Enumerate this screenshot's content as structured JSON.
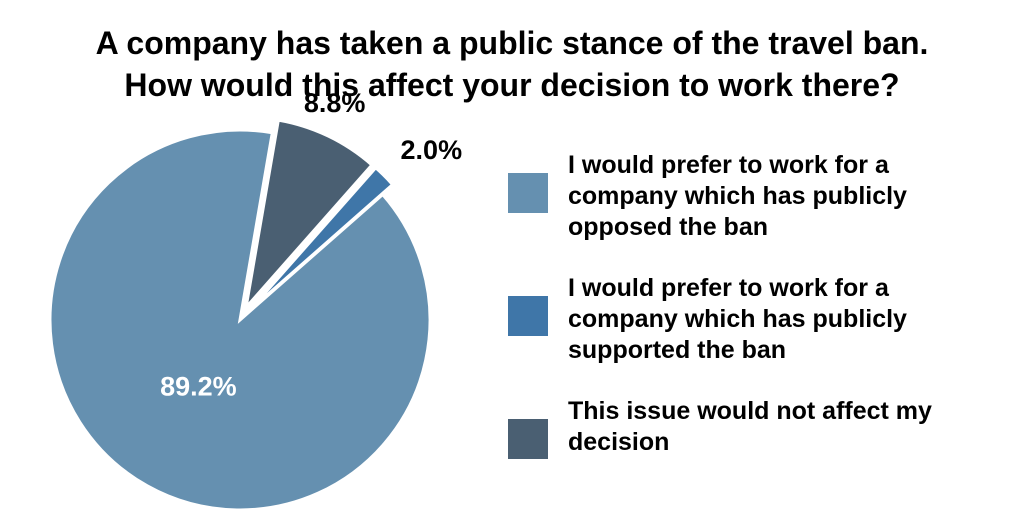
{
  "chart_data": {
    "type": "pie",
    "title": [
      "A company has taken a public stance of the travel ban.",
      "How would this affect your decision to work there?"
    ],
    "slices": [
      {
        "label": "I would prefer to work for a company which has publicly opposed the ban",
        "value": 89.2,
        "display": "89.2%",
        "color": "#6590b0"
      },
      {
        "label": "I would prefer to work for a company which has publicly supported the ban",
        "value": 2.0,
        "display": "2.0%",
        "color": "#3f76a8"
      },
      {
        "label": "This issue would not affect my decision",
        "value": 8.8,
        "display": "8.8%",
        "color": "#4a5f72"
      }
    ],
    "legend_position": "right"
  },
  "legend": [
    {
      "lines": [
        "I would prefer to work for a",
        "company which has publicly",
        "opposed the ban"
      ]
    },
    {
      "lines": [
        "I would prefer to work for a",
        "company which has publicly",
        "supported the ban"
      ]
    },
    {
      "lines": [
        "This issue would not affect my",
        "decision"
      ]
    }
  ]
}
